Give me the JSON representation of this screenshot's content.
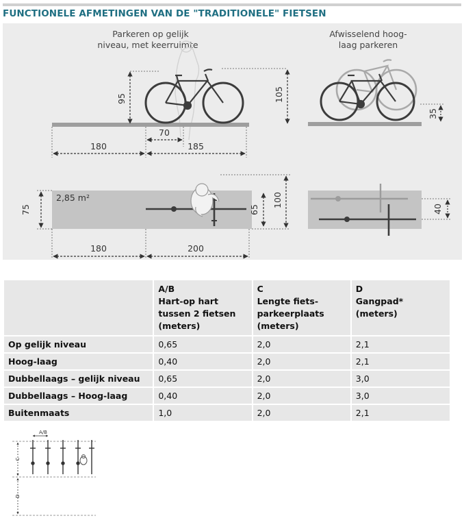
{
  "title": "FUNCTIONELE AFMETINGEN VAN DE \"TRADITIONELE\" FIETSEN",
  "diagram": {
    "left_caption_1": "Parkeren op gelijk",
    "left_caption_2": "niveau, met keerruimte",
    "right_caption_1": "Afwisselend hoog-",
    "right_caption_2": "laag parkeren",
    "dim_95": "95",
    "dim_105": "105",
    "dim_70": "70",
    "dim_180_top": "180",
    "dim_185": "185",
    "dim_35": "35",
    "area_label": "2,85 m²",
    "dim_75": "75",
    "dim_65": "65",
    "dim_100": "100",
    "dim_40": "40",
    "dim_180_bottom": "180",
    "dim_200": "200"
  },
  "table": {
    "headers": [
      {
        "lines": []
      },
      {
        "lines": [
          "A/B",
          "Hart-op hart",
          "tussen 2 fietsen",
          "(meters)"
        ]
      },
      {
        "lines": [
          "C",
          "Lengte fiets-",
          "parkeerplaats",
          "(meters)"
        ]
      },
      {
        "lines": [
          "D",
          "Gangpad*",
          "(meters)"
        ]
      }
    ],
    "rows": [
      {
        "label": "Op gelijk niveau",
        "ab": "0,65",
        "c": "2,0",
        "d": "2,1"
      },
      {
        "label": "Hoog-laag",
        "ab": "0,40",
        "c": "2,0",
        "d": "2,1"
      },
      {
        "label": "Dubbellaags – gelijk niveau",
        "ab": "0,65",
        "c": "2,0",
        "d": "3,0"
      },
      {
        "label": "Dubbellaags – Hoog-laag",
        "ab": "0,40",
        "c": "2,0",
        "d": "3,0"
      },
      {
        "label": "Buitenmaats",
        "ab": "1,0",
        "c": "2,0",
        "d": "2,1"
      }
    ]
  },
  "mini_diagram": {
    "ab_label": "A/B",
    "c_label": "C",
    "d_label": "D"
  },
  "colors": {
    "title": "#1f6f82",
    "panel": "#ececec",
    "cell": "#e7e7e7",
    "area": "#c4c4c4"
  }
}
